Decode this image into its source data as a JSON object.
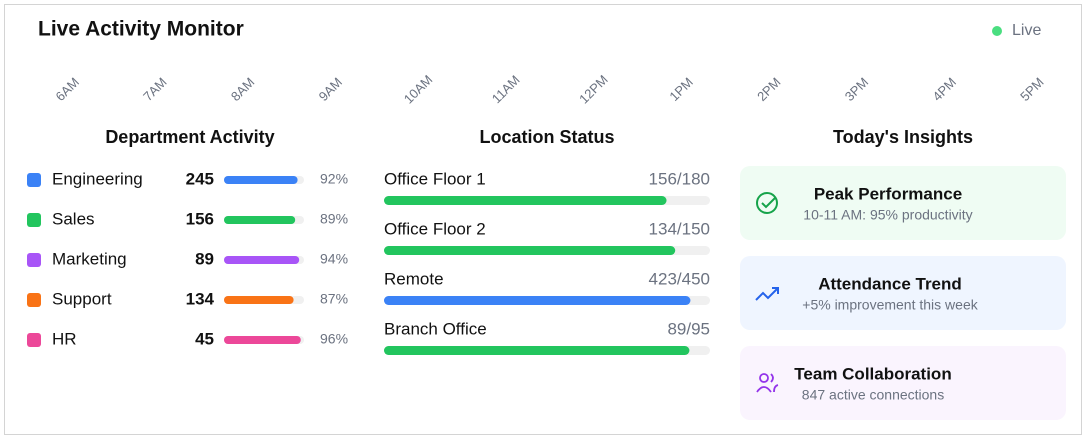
{
  "header": {
    "title": "Live Activity Monitor",
    "status": "Live"
  },
  "timeline": [
    "6AM",
    "7AM",
    "8AM",
    "9AM",
    "10AM",
    "11AM",
    "12PM",
    "1PM",
    "2PM",
    "3PM",
    "4PM",
    "5PM"
  ],
  "department_activity": {
    "title": "Department Activity",
    "rows": [
      {
        "name": "Engineering",
        "count": 245,
        "percent": 92,
        "percent_label": "92%",
        "color": "#3b82f6"
      },
      {
        "name": "Sales",
        "count": 156,
        "percent": 89,
        "percent_label": "89%",
        "color": "#22c55e"
      },
      {
        "name": "Marketing",
        "count": 89,
        "percent": 94,
        "percent_label": "94%",
        "color": "#a855f7"
      },
      {
        "name": "Support",
        "count": 134,
        "percent": 87,
        "percent_label": "87%",
        "color": "#f97316"
      },
      {
        "name": "HR",
        "count": 45,
        "percent": 96,
        "percent_label": "96%",
        "color": "#ec4899"
      }
    ]
  },
  "location_status": {
    "title": "Location Status",
    "rows": [
      {
        "name": "Office Floor 1",
        "current": 156,
        "capacity": 180,
        "label": "156/180",
        "color": "#22c55e"
      },
      {
        "name": "Office Floor 2",
        "current": 134,
        "capacity": 150,
        "label": "134/150",
        "color": "#22c55e"
      },
      {
        "name": "Remote",
        "current": 423,
        "capacity": 450,
        "label": "423/450",
        "color": "#3b82f6"
      },
      {
        "name": "Branch Office",
        "current": 89,
        "capacity": 95,
        "label": "89/95",
        "color": "#22c55e"
      }
    ]
  },
  "insights": {
    "title": "Today's Insights",
    "cards": [
      {
        "title": "Peak Performance",
        "text": "10-11 AM: 95% productivity"
      },
      {
        "title": "Attendance Trend",
        "text": "+5% improvement this week"
      },
      {
        "title": "Team Collaboration",
        "text": "847 active connections"
      }
    ]
  }
}
